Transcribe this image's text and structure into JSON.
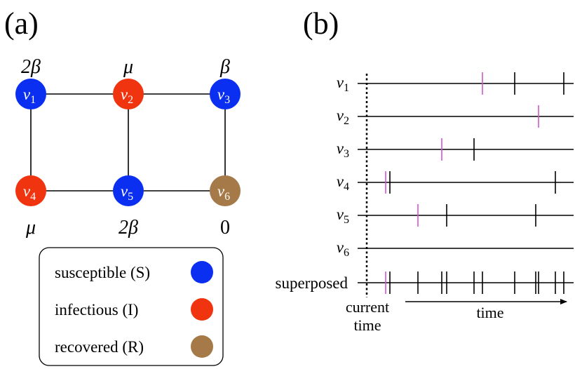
{
  "panel_a": {
    "label": "(a)",
    "nodes": [
      {
        "id": "v1",
        "base": "v",
        "sub": "1",
        "state": "S",
        "rate": "2β"
      },
      {
        "id": "v2",
        "base": "v",
        "sub": "2",
        "state": "I",
        "rate": "μ"
      },
      {
        "id": "v3",
        "base": "v",
        "sub": "3",
        "state": "S",
        "rate": "β"
      },
      {
        "id": "v4",
        "base": "v",
        "sub": "4",
        "state": "I",
        "rate": "μ"
      },
      {
        "id": "v5",
        "base": "v",
        "sub": "5",
        "state": "S",
        "rate": "2β"
      },
      {
        "id": "v6",
        "base": "v",
        "sub": "6",
        "state": "R",
        "rate": "0"
      }
    ],
    "edges": [
      [
        "v1",
        "v2"
      ],
      [
        "v2",
        "v3"
      ],
      [
        "v1",
        "v4"
      ],
      [
        "v2",
        "v5"
      ],
      [
        "v3",
        "v6"
      ],
      [
        "v4",
        "v5"
      ],
      [
        "v5",
        "v6"
      ]
    ],
    "legend": [
      {
        "state": "S",
        "label": "susceptible (S)"
      },
      {
        "state": "I",
        "label": "infectious (I)"
      },
      {
        "state": "R",
        "label": "recovered (R)"
      }
    ],
    "colors": {
      "S": "#0a2ff0",
      "I": "#f0340f",
      "R": "#a57a48"
    }
  },
  "panel_b": {
    "label": "(b)",
    "rows": [
      {
        "base": "v",
        "sub": "1"
      },
      {
        "base": "v",
        "sub": "2"
      },
      {
        "base": "v",
        "sub": "3"
      },
      {
        "base": "v",
        "sub": "4"
      },
      {
        "base": "v",
        "sub": "5"
      },
      {
        "base": "v",
        "sub": "6"
      },
      {
        "text": "superposed"
      }
    ],
    "current_time_label": [
      "current",
      "time"
    ],
    "time_label": "time",
    "colors": {
      "event": "#000000",
      "first_event": "#d455d6"
    }
  }
}
